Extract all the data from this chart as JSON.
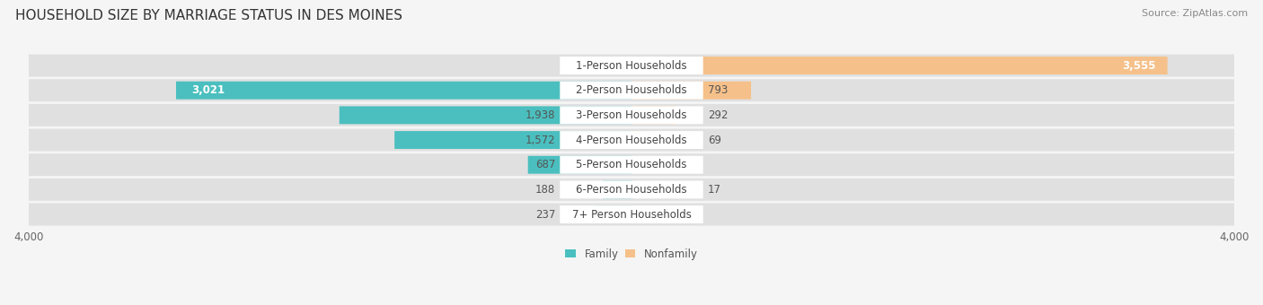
{
  "title": "HOUSEHOLD SIZE BY MARRIAGE STATUS IN DES MOINES",
  "source": "Source: ZipAtlas.com",
  "categories": [
    "7+ Person Households",
    "6-Person Households",
    "5-Person Households",
    "4-Person Households",
    "3-Person Households",
    "2-Person Households",
    "1-Person Households"
  ],
  "family_values": [
    237,
    188,
    687,
    1572,
    1938,
    3021,
    0
  ],
  "nonfamily_values": [
    0,
    17,
    0,
    69,
    292,
    793,
    3555
  ],
  "family_color": "#4BBFBF",
  "nonfamily_color": "#F5C08A",
  "xlim": 4000,
  "bg_color": "#f5f5f5",
  "bar_bg_color": "#e0e0e0",
  "title_fontsize": 11,
  "source_fontsize": 8,
  "label_fontsize": 8.5,
  "tick_fontsize": 8.5
}
